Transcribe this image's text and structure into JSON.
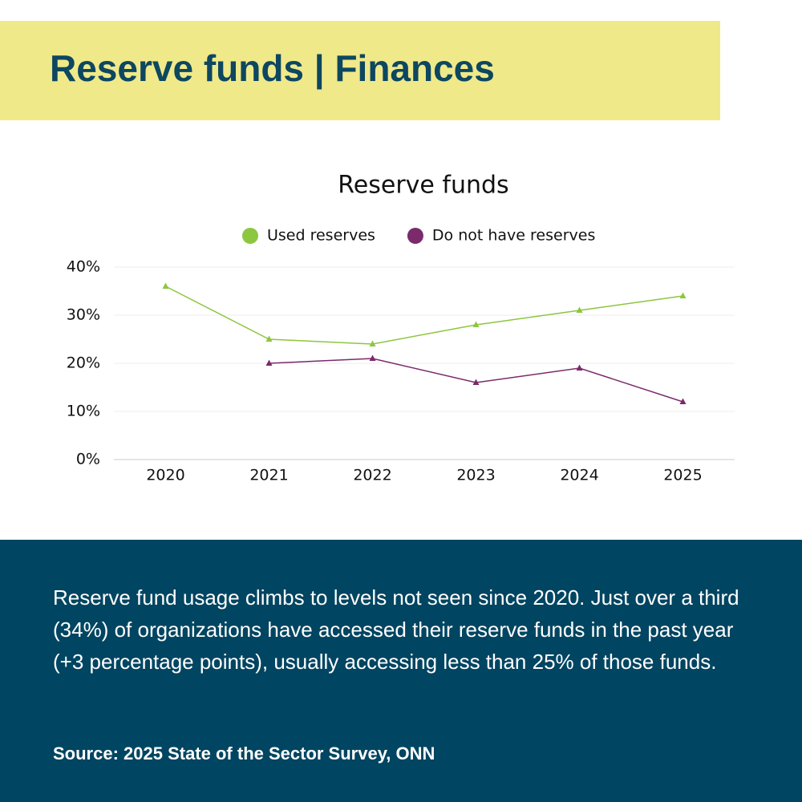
{
  "header": {
    "title": "Reserve funds | Finances"
  },
  "chart_data": {
    "type": "line",
    "title": "Reserve funds",
    "categories": [
      "2020",
      "2021",
      "2022",
      "2023",
      "2024",
      "2025"
    ],
    "series": [
      {
        "name": "Used reserves",
        "color": "#8dc63f",
        "values": [
          36,
          25,
          24,
          28,
          31,
          34
        ]
      },
      {
        "name": "Do not have reserves",
        "color": "#7b2a6b",
        "values": [
          null,
          20,
          21,
          16,
          19,
          12
        ]
      }
    ],
    "ylim": [
      0,
      40
    ],
    "yticks": [
      {
        "value": 0,
        "label": "0%"
      },
      {
        "value": 10,
        "label": "10%"
      },
      {
        "value": 20,
        "label": "20%"
      },
      {
        "value": 30,
        "label": "30%"
      },
      {
        "value": 40,
        "label": "40%"
      }
    ],
    "grid": true,
    "legend": "top"
  },
  "footer": {
    "text": "Reserve fund usage climbs to levels not seen since 2020. Just over a third (34%) of organizations have accessed their reserve funds in the past year (+3 percentage points), usually accessing less than 25% of those funds.",
    "source": "Source: 2025 State of the Sector Survey, ONN"
  }
}
